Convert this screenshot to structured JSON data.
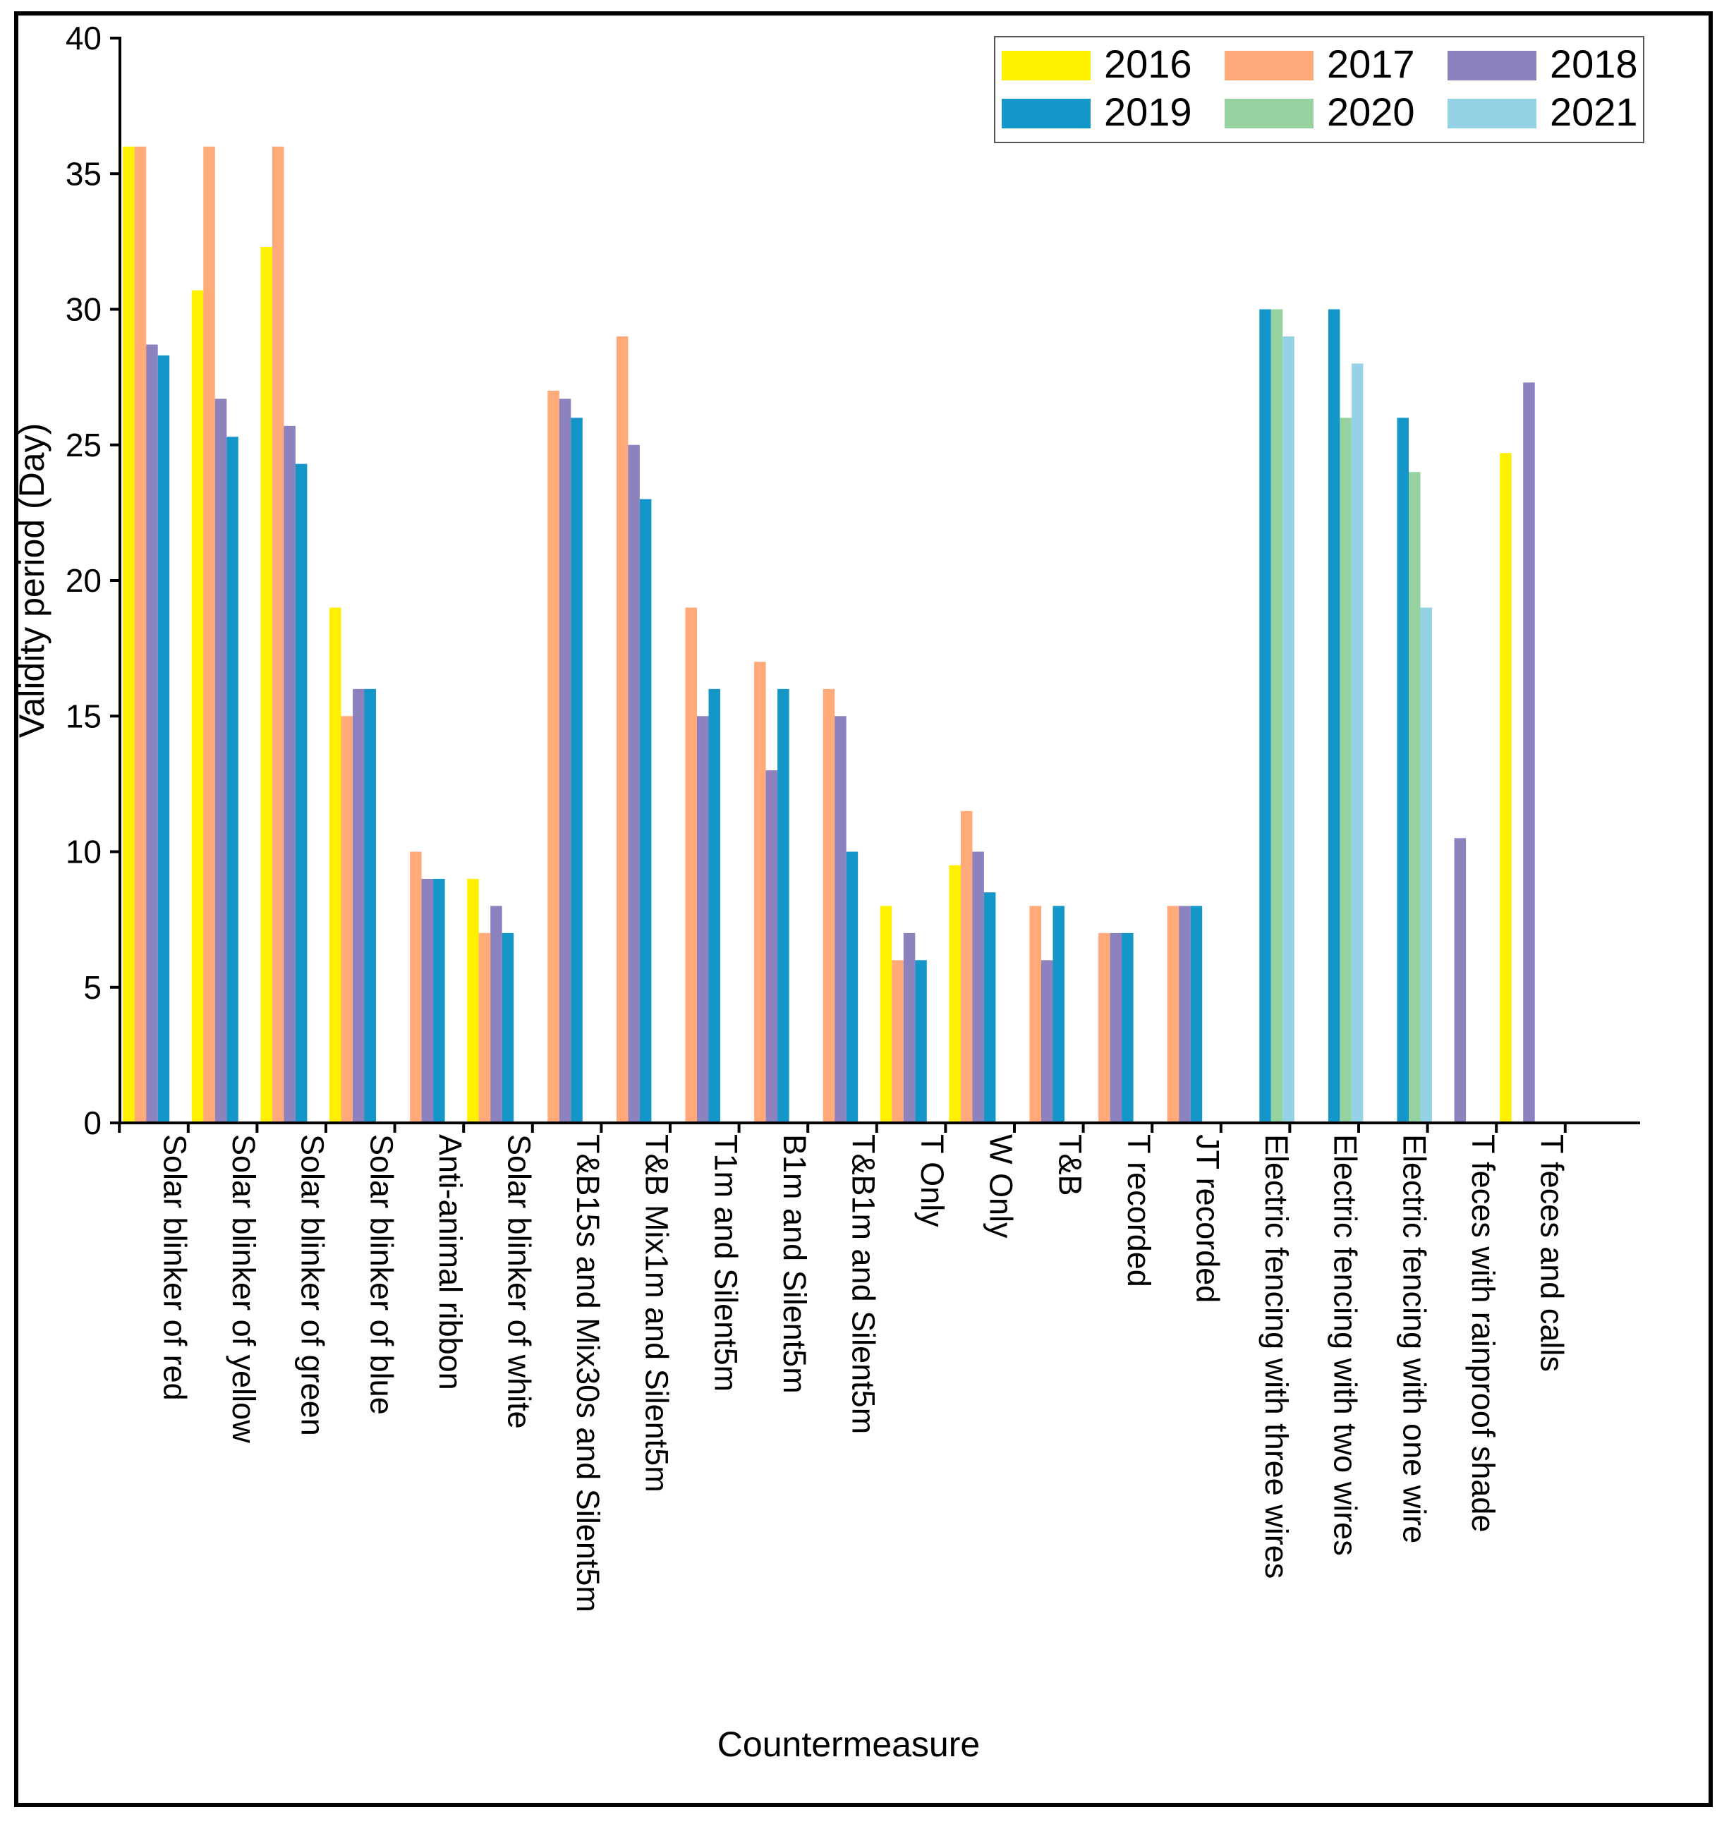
{
  "chart_data": {
    "type": "bar",
    "title": "",
    "xlabel": "Countermeasure",
    "ylabel": "Validity period (Day)",
    "ylim": [
      0,
      40
    ],
    "yticks": [
      "0",
      "5",
      "10",
      "15",
      "20",
      "25",
      "30",
      "35",
      "40"
    ],
    "grid": false,
    "legend_position": "top-right",
    "categories": [
      "Solar blinker of red",
      "Solar blinker of yellow",
      "Solar blinker of green",
      "Solar blinker of blue",
      "Anti-animal ribbon",
      "Solar blinker of white",
      "T&B15s and Mix30s and Silent5m",
      "T&B Mix1m and Silent5m",
      "T1m and Silent5m",
      "B1m and Silent5m",
      "T&B1m and Silent5m",
      "T Only",
      "W Only",
      "T&B",
      "T recorded",
      "JT recorded",
      "Electric fencing with three wires",
      "Electric fencing with two wires",
      "Electric fencing with one wire",
      "T feces with rainproof shade",
      "T feces and calls"
    ],
    "series": [
      {
        "name": "2016",
        "color": "#FFF000",
        "values": [
          36,
          30.7,
          32.3,
          19,
          null,
          9,
          null,
          null,
          null,
          null,
          null,
          8,
          9.5,
          null,
          null,
          null,
          null,
          null,
          null,
          null,
          24.7
        ]
      },
      {
        "name": "2017",
        "color": "#FFAA78",
        "values": [
          36,
          36,
          36,
          15,
          10,
          7,
          27,
          29,
          19,
          17,
          16,
          6,
          11.5,
          8,
          7,
          8,
          null,
          null,
          null,
          null,
          null
        ]
      },
      {
        "name": "2018",
        "color": "#8C82BE",
        "values": [
          28.7,
          26.7,
          25.7,
          16,
          9,
          8,
          26.7,
          25,
          15,
          13,
          15,
          7,
          10,
          6,
          7,
          8,
          null,
          null,
          null,
          10.5,
          27.3
        ]
      },
      {
        "name": "2019",
        "color": "#1496C8",
        "values": [
          28.3,
          25.3,
          24.3,
          16,
          9,
          7,
          26,
          23,
          16,
          16,
          10,
          6,
          8.5,
          8,
          7,
          8,
          30,
          30,
          26,
          null,
          null
        ]
      },
      {
        "name": "2020",
        "color": "#96D2A0",
        "values": [
          null,
          null,
          null,
          null,
          null,
          null,
          null,
          null,
          null,
          null,
          null,
          null,
          null,
          null,
          null,
          null,
          30,
          26,
          24,
          null,
          null
        ]
      },
      {
        "name": "2021",
        "color": "#96D2E6",
        "values": [
          null,
          null,
          null,
          null,
          null,
          null,
          null,
          null,
          null,
          null,
          null,
          null,
          null,
          null,
          null,
          null,
          29,
          28,
          19,
          null,
          null
        ]
      }
    ]
  }
}
